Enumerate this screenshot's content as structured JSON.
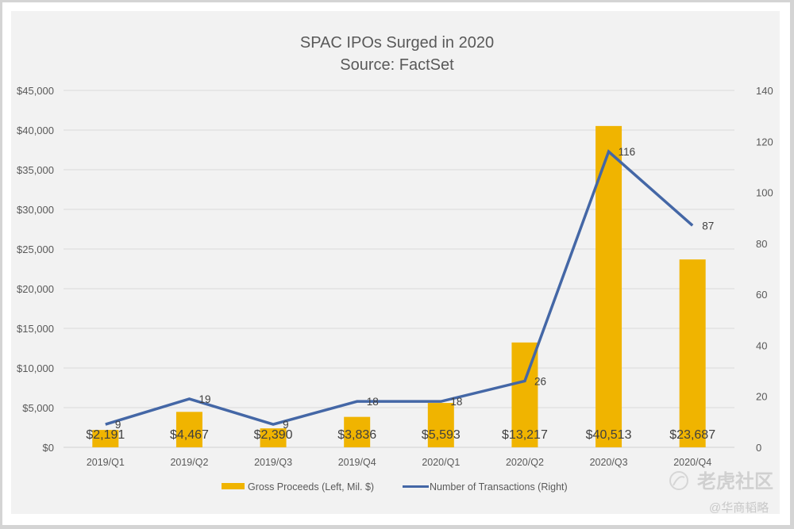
{
  "chart_data": {
    "type": "bar",
    "combo": "bar+line (dual axis)",
    "title": "SPAC IPOs Surged in 2020",
    "subtitle": "Source: FactSet",
    "categories": [
      "2019/Q1",
      "2019/Q2",
      "2019/Q3",
      "2019/Q4",
      "2020/Q1",
      "2020/Q2",
      "2020/Q3",
      "2020/Q4"
    ],
    "series": [
      {
        "name": "Gross Proceeds (Left, Mil. $)",
        "type": "bar",
        "axis": "left",
        "color": "#f0b400",
        "values": [
          2191,
          4467,
          2390,
          3836,
          5593,
          13217,
          40513,
          23687
        ],
        "labels": [
          "$2,191",
          "$4,467",
          "$2,390",
          "$3,836",
          "$5,593",
          "$13,217",
          "$40,513",
          "$23,687"
        ]
      },
      {
        "name": "Number of Transactions (Right)",
        "type": "line",
        "axis": "right",
        "color": "#4467a6",
        "values": [
          9,
          19,
          9,
          18,
          18,
          26,
          116,
          87
        ],
        "labels": [
          "9",
          "19",
          "9",
          "18",
          "18",
          "26",
          "116",
          "87"
        ]
      }
    ],
    "left_axis": {
      "ylim": [
        0,
        45000
      ],
      "ticks": [
        "$0",
        "$5,000",
        "$10,000",
        "$15,000",
        "$20,000",
        "$25,000",
        "$30,000",
        "$35,000",
        "$40,000",
        "$45,000"
      ],
      "tick_values": [
        0,
        5000,
        10000,
        15000,
        20000,
        25000,
        30000,
        35000,
        40000,
        45000
      ]
    },
    "right_axis": {
      "ylim": [
        0,
        140
      ],
      "ticks": [
        "0",
        "20",
        "40",
        "60",
        "80",
        "100",
        "120",
        "140"
      ],
      "tick_values": [
        0,
        20,
        40,
        60,
        80,
        100,
        120,
        140
      ]
    },
    "grid": true,
    "legend_position": "bottom"
  },
  "watermark": {
    "brand": "老虎社区",
    "author": "@华商韬略"
  }
}
